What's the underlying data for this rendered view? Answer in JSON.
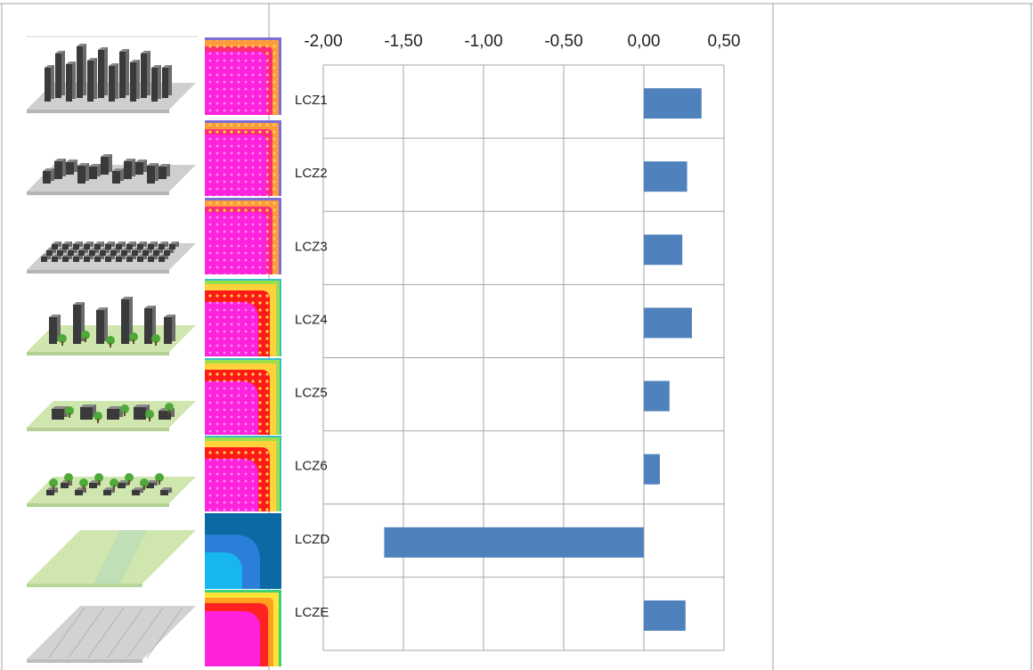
{
  "chart_data": {
    "type": "bar",
    "orientation": "horizontal",
    "categories": [
      "LCZ1",
      "LCZ2",
      "LCZ3",
      "LCZ4",
      "LCZ5",
      "LCZ6",
      "LCZD",
      "LCZE"
    ],
    "values": [
      0.36,
      0.27,
      0.24,
      0.3,
      0.16,
      0.1,
      -1.62,
      0.26
    ],
    "xlim": [
      -2.0,
      0.5
    ],
    "x_ticks": [
      "-2,00",
      "-1,50",
      "-1,00",
      "-0,50",
      "0,00",
      "0,50"
    ],
    "x_tick_values": [
      -2.0,
      -1.5,
      -1.0,
      -0.5,
      0.0,
      0.5
    ],
    "x_axis_position": "top",
    "grid": true,
    "bar_color": "#4f81bd",
    "legend": "none"
  },
  "rows": [
    {
      "scene": "compact-highrise",
      "heatmap": "magenta-core"
    },
    {
      "scene": "compact-midrise",
      "heatmap": "magenta-core"
    },
    {
      "scene": "compact-lowrise",
      "heatmap": "magenta-core"
    },
    {
      "scene": "open-highrise",
      "heatmap": "red-magenta"
    },
    {
      "scene": "open-midrise",
      "heatmap": "red-magenta"
    },
    {
      "scene": "open-lowrise",
      "heatmap": "red-magenta"
    },
    {
      "scene": "low-plants",
      "heatmap": "blue-cool"
    },
    {
      "scene": "bare-rock-paved",
      "heatmap": "warm-rings"
    }
  ]
}
